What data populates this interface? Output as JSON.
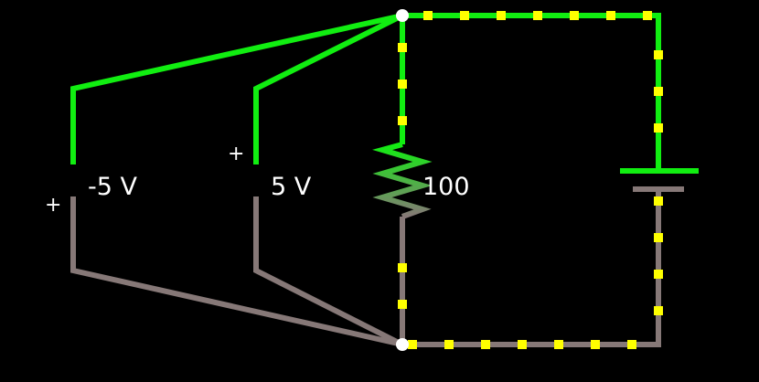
{
  "colors": {
    "background": "#000000",
    "high_wire": "#11ee11",
    "low_wire": "#867877",
    "current_dot": "#ffff00",
    "node": "#ffffff",
    "resistor_top": "#11ee11",
    "resistor_bottom": "#867877"
  },
  "components": {
    "source_left": {
      "value_label": "-5 V",
      "polarity": "+"
    },
    "source_right": {
      "value_label": "5 V",
      "polarity": "+"
    },
    "resistor": {
      "value_label": "100"
    },
    "battery": {
      "icon": "battery-icon"
    }
  }
}
